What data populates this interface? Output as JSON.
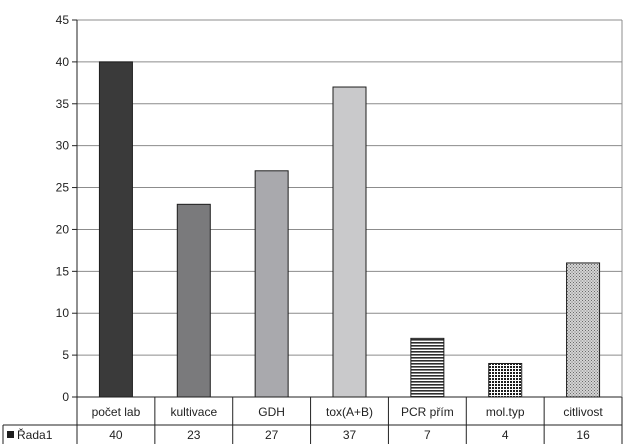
{
  "chart_data": {
    "type": "bar",
    "categories": [
      "počet lab",
      "kultivace",
      "GDH",
      "tox(A+B)",
      "PCR přím",
      "mol.typ",
      "citlivost"
    ],
    "series": [
      {
        "name": "Řada1",
        "values": [
          40,
          23,
          27,
          37,
          7,
          4,
          16
        ]
      }
    ],
    "ylim": [
      0,
      45
    ],
    "yticks": [
      0,
      5,
      10,
      15,
      20,
      25,
      30,
      35,
      40,
      45
    ],
    "grid": "horizontal",
    "data_table": true,
    "bar_fills": [
      "dark-gray",
      "medium-gray",
      "light-medium-gray",
      "light-gray",
      "horizontal-stripes",
      "dotted",
      "fine-diagonal"
    ],
    "colors": {
      "dark": "#3a3a3a",
      "medium": "#7a7a7c",
      "light_medium": "#a9a9ad",
      "light": "#c9c9cb",
      "grid": "#8c8c8c",
      "axis": "#222222"
    }
  }
}
